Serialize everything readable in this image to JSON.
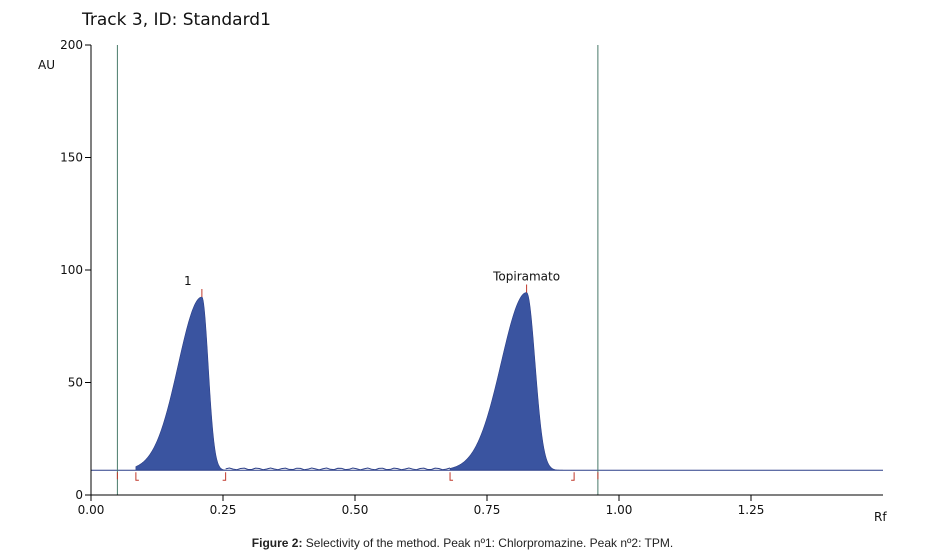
{
  "chart_data": {
    "type": "area",
    "title": "Track 3, ID: Standard1",
    "ylabel": "AU",
    "xlabel": "Rf",
    "xlim": [
      0.0,
      1.5
    ],
    "ylim": [
      0,
      200
    ],
    "x_ticks": [
      "0.00",
      "0.25",
      "0.50",
      "0.75",
      "1.00",
      "1.25"
    ],
    "y_ticks": [
      "0",
      "50",
      "100",
      "150",
      "200"
    ],
    "baseline": 11,
    "front_lines": [
      0.05,
      0.96
    ],
    "peaks": [
      {
        "label": "1",
        "rf": 0.21,
        "height": 88,
        "start": 0.085,
        "end": 0.255,
        "width_left": 0.045,
        "width_right": 0.012
      },
      {
        "label": "Topiramato",
        "rf": 0.825,
        "height": 90,
        "start": 0.68,
        "end": 0.915,
        "width_left": 0.048,
        "width_right": 0.016
      }
    ],
    "grid": false,
    "fill_color": "#3a54a0",
    "line_color": "#2c3f88",
    "marker_color": "#c0392b"
  },
  "caption": {
    "bold": "Figure 2:",
    "text": " Selectivity of the method. Peak nº1: Chlorpromazine. Peak nº2: TPM."
  }
}
